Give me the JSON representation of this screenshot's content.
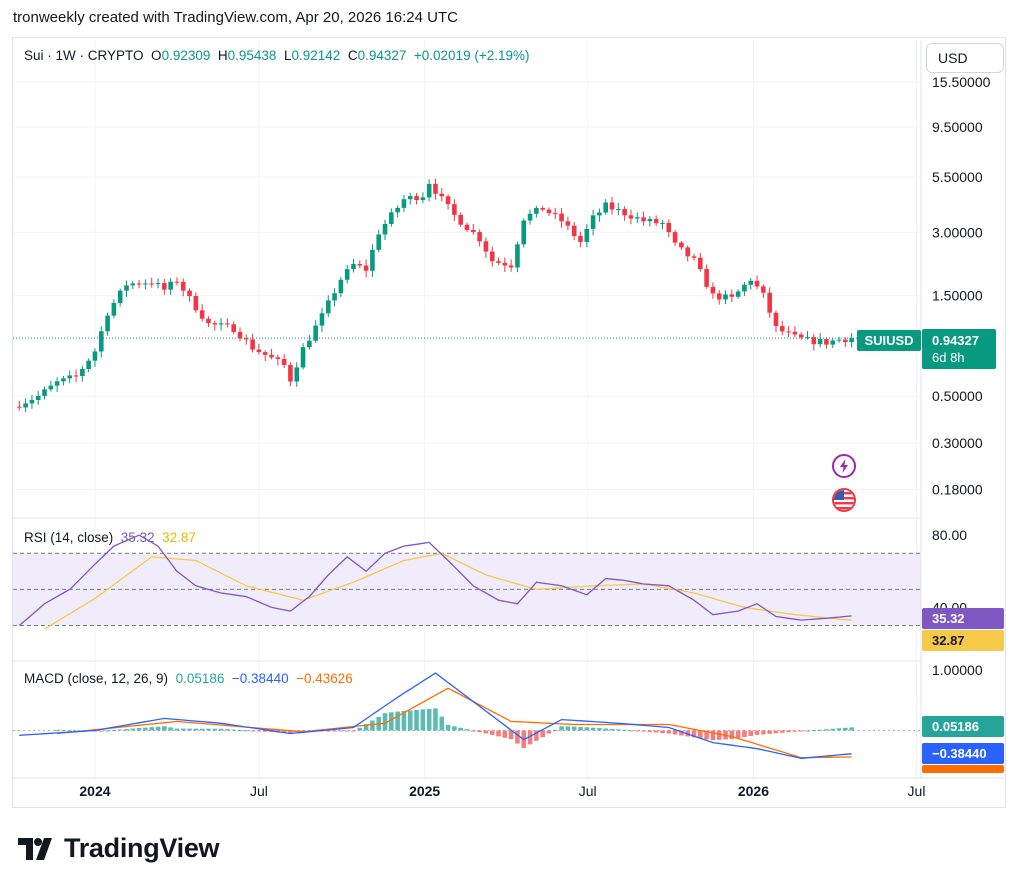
{
  "header": {
    "text": "tronweekly created with TradingView.com, Apr 20, 2026 16:24 UTC"
  },
  "legend": {
    "symbol": "Sui · 1W · CRYPTO",
    "o_label": "O",
    "o_value": "0.92309",
    "h_label": "H",
    "h_value": "0.95438",
    "l_label": "L",
    "l_value": "0.92142",
    "c_label": "C",
    "c_value": "0.94327",
    "change": "+0.02019 (+2.19%)"
  },
  "currency_button": "USD",
  "price_axis": [
    "15.50000",
    "9.50000",
    "5.50000",
    "3.00000",
    "1.50000",
    "0.50000",
    "0.30000",
    "0.18000"
  ],
  "last_price": {
    "symbol": "SUIUSD",
    "price": "0.94327",
    "countdown": "6d 8h"
  },
  "rsi": {
    "label": "RSI (14, close)",
    "rsi_value": "35.32",
    "ma_value": "32.87",
    "axis": [
      "80.00",
      "40.00"
    ],
    "bands": {
      "upper": 70,
      "middle": 50,
      "lower": 30
    },
    "colors": {
      "rsi": "#7e57c2",
      "ma": "#f7c948",
      "band_fill": "#f1ecfb"
    }
  },
  "macd": {
    "label": "MACD (close, 12, 26, 9)",
    "hist_value": "0.05186",
    "macd_value": "−0.38440",
    "signal_value": "−0.43626",
    "axis": [
      "1.00000"
    ],
    "colors": {
      "macd": "#2962ff",
      "signal": "#ff6d00",
      "hist_up": "#26a69a",
      "hist_down": "#ef5350"
    }
  },
  "time_axis": [
    "2024",
    "Jul",
    "2025",
    "Jul",
    "2026",
    "Jul"
  ],
  "icons": [
    "lightning-icon",
    "us-flag-icon"
  ],
  "brand": {
    "name": "TradingView"
  },
  "colors": {
    "up": "#089981",
    "down": "#f23645",
    "accent": "#089981"
  },
  "chart_data": [
    {
      "type": "candlestick",
      "title": "Sui · 1W · CRYPTO",
      "scale": "log",
      "y_ticks": [
        0.18,
        0.3,
        0.5,
        1.5,
        3.0,
        5.5,
        9.5,
        15.5
      ],
      "x_range": [
        "2023-10-02",
        "2026-07-06"
      ],
      "x_ticks": [
        {
          "label": "2024",
          "date": "2024-01-01"
        },
        {
          "label": "Jul",
          "date": "2024-07-01"
        },
        {
          "label": "2025",
          "date": "2025-01-01"
        },
        {
          "label": "Jul",
          "date": "2025-07-01"
        },
        {
          "label": "2026",
          "date": "2026-01-01"
        },
        {
          "label": "Jul",
          "date": "2026-07-01"
        }
      ],
      "series": [
        {
          "name": "SUIUSD",
          "close_path": [
            [
              "2023-10-09",
              0.46
            ],
            [
              "2023-10-30",
              0.5
            ],
            [
              "2023-11-20",
              0.58
            ],
            [
              "2023-12-11",
              0.62
            ],
            [
              "2024-01-01",
              0.82
            ],
            [
              "2024-01-15",
              1.25
            ],
            [
              "2024-02-05",
              1.7
            ],
            [
              "2024-03-04",
              1.75
            ],
            [
              "2024-03-18",
              1.6
            ],
            [
              "2024-04-01",
              1.78
            ],
            [
              "2024-04-15",
              1.45
            ],
            [
              "2024-05-06",
              1.1
            ],
            [
              "2024-06-03",
              1.05
            ],
            [
              "2024-06-24",
              0.85
            ],
            [
              "2024-07-29",
              0.7
            ],
            [
              "2024-08-05",
              0.6
            ],
            [
              "2024-08-19",
              0.84
            ],
            [
              "2024-09-09",
              1.2
            ],
            [
              "2024-09-30",
              1.8
            ],
            [
              "2024-10-14",
              2.1
            ],
            [
              "2024-10-28",
              2.0
            ],
            [
              "2024-11-11",
              3.0
            ],
            [
              "2024-11-25",
              3.6
            ],
            [
              "2024-12-09",
              4.3
            ],
            [
              "2024-12-30",
              4.5
            ],
            [
              "2025-01-06",
              5.2
            ],
            [
              "2025-01-20",
              4.3
            ],
            [
              "2025-02-03",
              3.6
            ],
            [
              "2025-03-03",
              2.8
            ],
            [
              "2025-03-17",
              2.2
            ],
            [
              "2025-04-07",
              2.1
            ],
            [
              "2025-04-21",
              3.5
            ],
            [
              "2025-05-12",
              3.9
            ],
            [
              "2025-06-02",
              3.4
            ],
            [
              "2025-06-23",
              2.7
            ],
            [
              "2025-07-07",
              3.5
            ],
            [
              "2025-07-21",
              4.0
            ],
            [
              "2025-08-11",
              3.7
            ],
            [
              "2025-09-01",
              3.4
            ],
            [
              "2025-09-22",
              3.3
            ],
            [
              "2025-10-06",
              2.6
            ],
            [
              "2025-10-27",
              2.2
            ],
            [
              "2025-11-17",
              1.5
            ],
            [
              "2025-12-08",
              1.45
            ],
            [
              "2025-12-29",
              1.8
            ],
            [
              "2026-01-12",
              1.5
            ],
            [
              "2026-01-26",
              1.05
            ],
            [
              "2026-02-16",
              0.95
            ],
            [
              "2026-03-02",
              0.92
            ],
            [
              "2026-03-23",
              0.9
            ],
            [
              "2026-04-06",
              0.93
            ],
            [
              "2026-04-20",
              0.94327
            ]
          ]
        }
      ]
    },
    {
      "type": "line",
      "title": "RSI (14, close)",
      "y_ticks": [
        40,
        80
      ],
      "series": [
        {
          "name": "RSI",
          "values": [
            [
              "2023-10-09",
              30
            ],
            [
              "2023-11-06",
              42
            ],
            [
              "2023-12-04",
              50
            ],
            [
              "2024-01-01",
              64
            ],
            [
              "2024-01-22",
              74
            ],
            [
              "2024-02-19",
              80
            ],
            [
              "2024-03-11",
              74
            ],
            [
              "2024-04-01",
              60
            ],
            [
              "2024-04-22",
              52
            ],
            [
              "2024-05-20",
              48
            ],
            [
              "2024-06-17",
              46
            ],
            [
              "2024-07-15",
              40
            ],
            [
              "2024-08-05",
              38
            ],
            [
              "2024-08-26",
              46
            ],
            [
              "2024-09-16",
              58
            ],
            [
              "2024-10-07",
              68
            ],
            [
              "2024-10-28",
              60
            ],
            [
              "2024-11-18",
              70
            ],
            [
              "2024-12-09",
              74
            ],
            [
              "2025-01-06",
              76
            ],
            [
              "2025-01-27",
              66
            ],
            [
              "2025-02-24",
              52
            ],
            [
              "2025-03-24",
              44
            ],
            [
              "2025-04-14",
              42
            ],
            [
              "2025-05-05",
              54
            ],
            [
              "2025-06-02",
              52
            ],
            [
              "2025-06-30",
              47
            ],
            [
              "2025-07-21",
              56
            ],
            [
              "2025-08-11",
              55
            ],
            [
              "2025-09-01",
              53
            ],
            [
              "2025-09-29",
              52
            ],
            [
              "2025-10-27",
              44
            ],
            [
              "2025-11-17",
              36
            ],
            [
              "2025-12-15",
              38
            ],
            [
              "2026-01-05",
              42
            ],
            [
              "2026-01-26",
              35
            ],
            [
              "2026-02-23",
              33
            ],
            [
              "2026-03-23",
              34
            ],
            [
              "2026-04-20",
              35.32
            ]
          ]
        },
        {
          "name": "RSI-based MA",
          "values": [
            [
              "2023-11-06",
              28
            ],
            [
              "2024-01-01",
              45
            ],
            [
              "2024-03-04",
              68
            ],
            [
              "2024-04-22",
              66
            ],
            [
              "2024-06-17",
              52
            ],
            [
              "2024-08-19",
              44
            ],
            [
              "2024-10-14",
              54
            ],
            [
              "2024-12-09",
              66
            ],
            [
              "2025-01-20",
              70
            ],
            [
              "2025-03-10",
              58
            ],
            [
              "2025-05-05",
              50
            ],
            [
              "2025-07-07",
              52
            ],
            [
              "2025-09-01",
              53
            ],
            [
              "2025-10-27",
              48
            ],
            [
              "2025-12-22",
              40
            ],
            [
              "2026-02-16",
              36
            ],
            [
              "2026-04-20",
              32.87
            ]
          ]
        }
      ]
    },
    {
      "type": "line",
      "title": "MACD (close, 12, 26, 9)",
      "y_ticks": [
        1.0
      ],
      "series": [
        {
          "name": "MACD",
          "values": [
            [
              "2023-10-09",
              -0.08
            ],
            [
              "2024-01-01",
              0.0
            ],
            [
              "2024-03-18",
              0.2
            ],
            [
              "2024-05-20",
              0.12
            ],
            [
              "2024-08-05",
              -0.05
            ],
            [
              "2024-10-14",
              0.05
            ],
            [
              "2024-12-02",
              0.55
            ],
            [
              "2025-01-13",
              0.95
            ],
            [
              "2025-03-03",
              0.4
            ],
            [
              "2025-04-21",
              -0.15
            ],
            [
              "2025-06-02",
              0.18
            ],
            [
              "2025-08-04",
              0.12
            ],
            [
              "2025-09-29",
              0.05
            ],
            [
              "2025-11-17",
              -0.2
            ],
            [
              "2026-01-05",
              -0.3
            ],
            [
              "2026-02-23",
              -0.46
            ],
            [
              "2026-04-20",
              -0.3844
            ]
          ]
        },
        {
          "name": "Signal",
          "values": [
            [
              "2023-11-20",
              -0.05
            ],
            [
              "2024-04-01",
              0.15
            ],
            [
              "2024-08-19",
              -0.02
            ],
            [
              "2024-11-18",
              0.12
            ],
            [
              "2025-01-27",
              0.7
            ],
            [
              "2025-04-07",
              0.15
            ],
            [
              "2025-06-16",
              0.1
            ],
            [
              "2025-09-29",
              0.1
            ],
            [
              "2025-12-08",
              -0.1
            ],
            [
              "2026-02-23",
              -0.45
            ],
            [
              "2026-04-20",
              -0.43626
            ]
          ]
        },
        {
          "name": "Histogram",
          "values": [
            [
              "2026-04-20",
              0.05186
            ]
          ]
        }
      ]
    }
  ]
}
